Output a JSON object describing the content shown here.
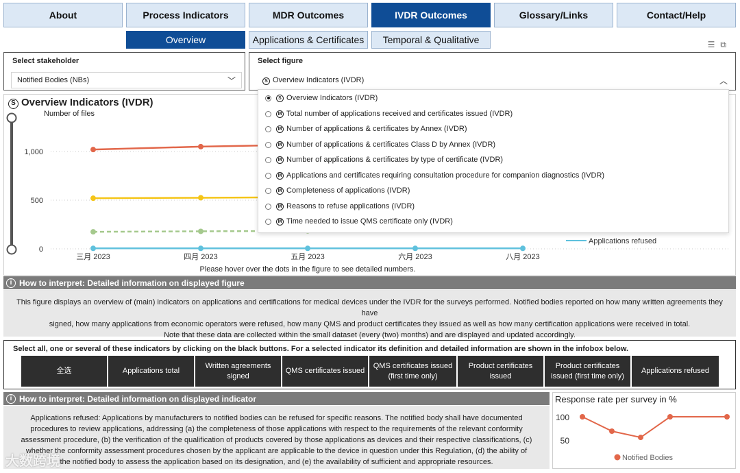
{
  "nav": {
    "tabs": [
      "About",
      "Process Indicators",
      "MDR Outcomes",
      "IVDR Outcomes",
      "Glossary/Links",
      "Contact/Help"
    ],
    "active": "IVDR Outcomes"
  },
  "subnav": {
    "tabs": [
      "Overview",
      "Applications & Certificates",
      "Temporal & Qualitative"
    ],
    "active": "Overview"
  },
  "stakeholder": {
    "label": "Select stakeholder",
    "value": "Notified Bodies (NBs)"
  },
  "figure": {
    "label": "Select figure",
    "value": "Overview Indicators (IVDR)",
    "options": [
      "Overview Indicators (IVDR)",
      "Total number of applications received and certificates issued (IVDR)",
      "Number of applications & certificates by Annex (IVDR)",
      "Number of applications & certificates Class D by Annex (IVDR)",
      "Number of applications & certificates by type of certificate (IVDR)",
      "Applications and certificates requiring consultation procedure for companion diagnostics (IVDR)",
      "Completeness of applications (IVDR)",
      "Reasons to refuse applications (IVDR)",
      "Time needed to issue QMS certificate only (IVDR)"
    ],
    "selected_index": 0
  },
  "chart_title": "Overview Indicators (IVDR)",
  "hover_hint": "Please hover over the dots in the figure to see detailed numbers.",
  "chart_data": {
    "type": "line",
    "title": "Overview Indicators (IVDR)",
    "ylabel": "Number of files",
    "xlabel": "",
    "categories": [
      "三月 2023",
      "四月 2023",
      "五月 2023",
      "六月 2023",
      "八月 2023"
    ],
    "yticks": [
      "0",
      "500",
      "1,000"
    ],
    "ylim": [
      0,
      1400
    ],
    "legend_visible": [
      "Applications refused"
    ],
    "series": [
      {
        "color": "#e2674a",
        "dashed": false,
        "values": [
          1020,
          1050,
          1070,
          null,
          null
        ]
      },
      {
        "color": "#f5c518",
        "dashed": false,
        "values": [
          520,
          525,
          530,
          null,
          null
        ]
      },
      {
        "color": "#a5c98d",
        "dashed": true,
        "values": [
          175,
          180,
          185,
          null,
          null
        ]
      },
      {
        "name": "Applications refused",
        "color": "#5fc1dd",
        "dashed": false,
        "values": [
          5,
          5,
          5,
          5,
          5
        ]
      }
    ]
  },
  "how_figure": {
    "title": "How to interpret: Detailed information on displayed figure",
    "lines": [
      "This figure displays an overview of (main) indicators on applications and certifications for medical devices under the IVDR for the surveys performed. Notified bodies reported on how many written agreements they have",
      "signed, how many applications from economic operators were refused, how many QMS and product certificates they issued as well as how many certification applications were received in total.",
      "Note that these data are collected within the small dataset (every (two) months) and are displayed and updated accordingly."
    ]
  },
  "indicator_select": {
    "label": "Select all, one or several of these indicators by clicking on the black buttons. For a selected indicator its definition and detailed information are shown in the infobox below.",
    "buttons": [
      "全选",
      "Applications total",
      "Written agreements signed",
      "QMS certificates issued",
      "QMS certificates issued (first time only)",
      "Product certificates issued",
      "Product certificates issued (first time only)",
      "Applications refused"
    ]
  },
  "how_indicator": {
    "title": "How to interpret: Detailed information on displayed indicator",
    "lines": [
      "Applications refused: Applications by manufacturers to notified bodies can be refused for specific reasons. The notified body shall have documented",
      "procedures to review applications, addressing (a) the completeness of those applications with respect to the requirements of the relevant conformity",
      "assessment procedure, (b) the verification of the qualification of products covered by those applications as devices and their respective classifications, (c)",
      "whether the conformity assessment procedures chosen by the applicant are applicable to the device in question under this Regulation, (d) the ability of",
      "the notified body to assess the application based on its designation, and (e) the availability of sufficient and appropriate resources."
    ]
  },
  "response_rate": {
    "title": "Response rate per survey in %",
    "yticks": [
      "50",
      "100"
    ],
    "legend": "Notified Bodies",
    "color": "#e2674a",
    "values": [
      100,
      70,
      57,
      100,
      100
    ]
  },
  "watermark": "大数跨境"
}
